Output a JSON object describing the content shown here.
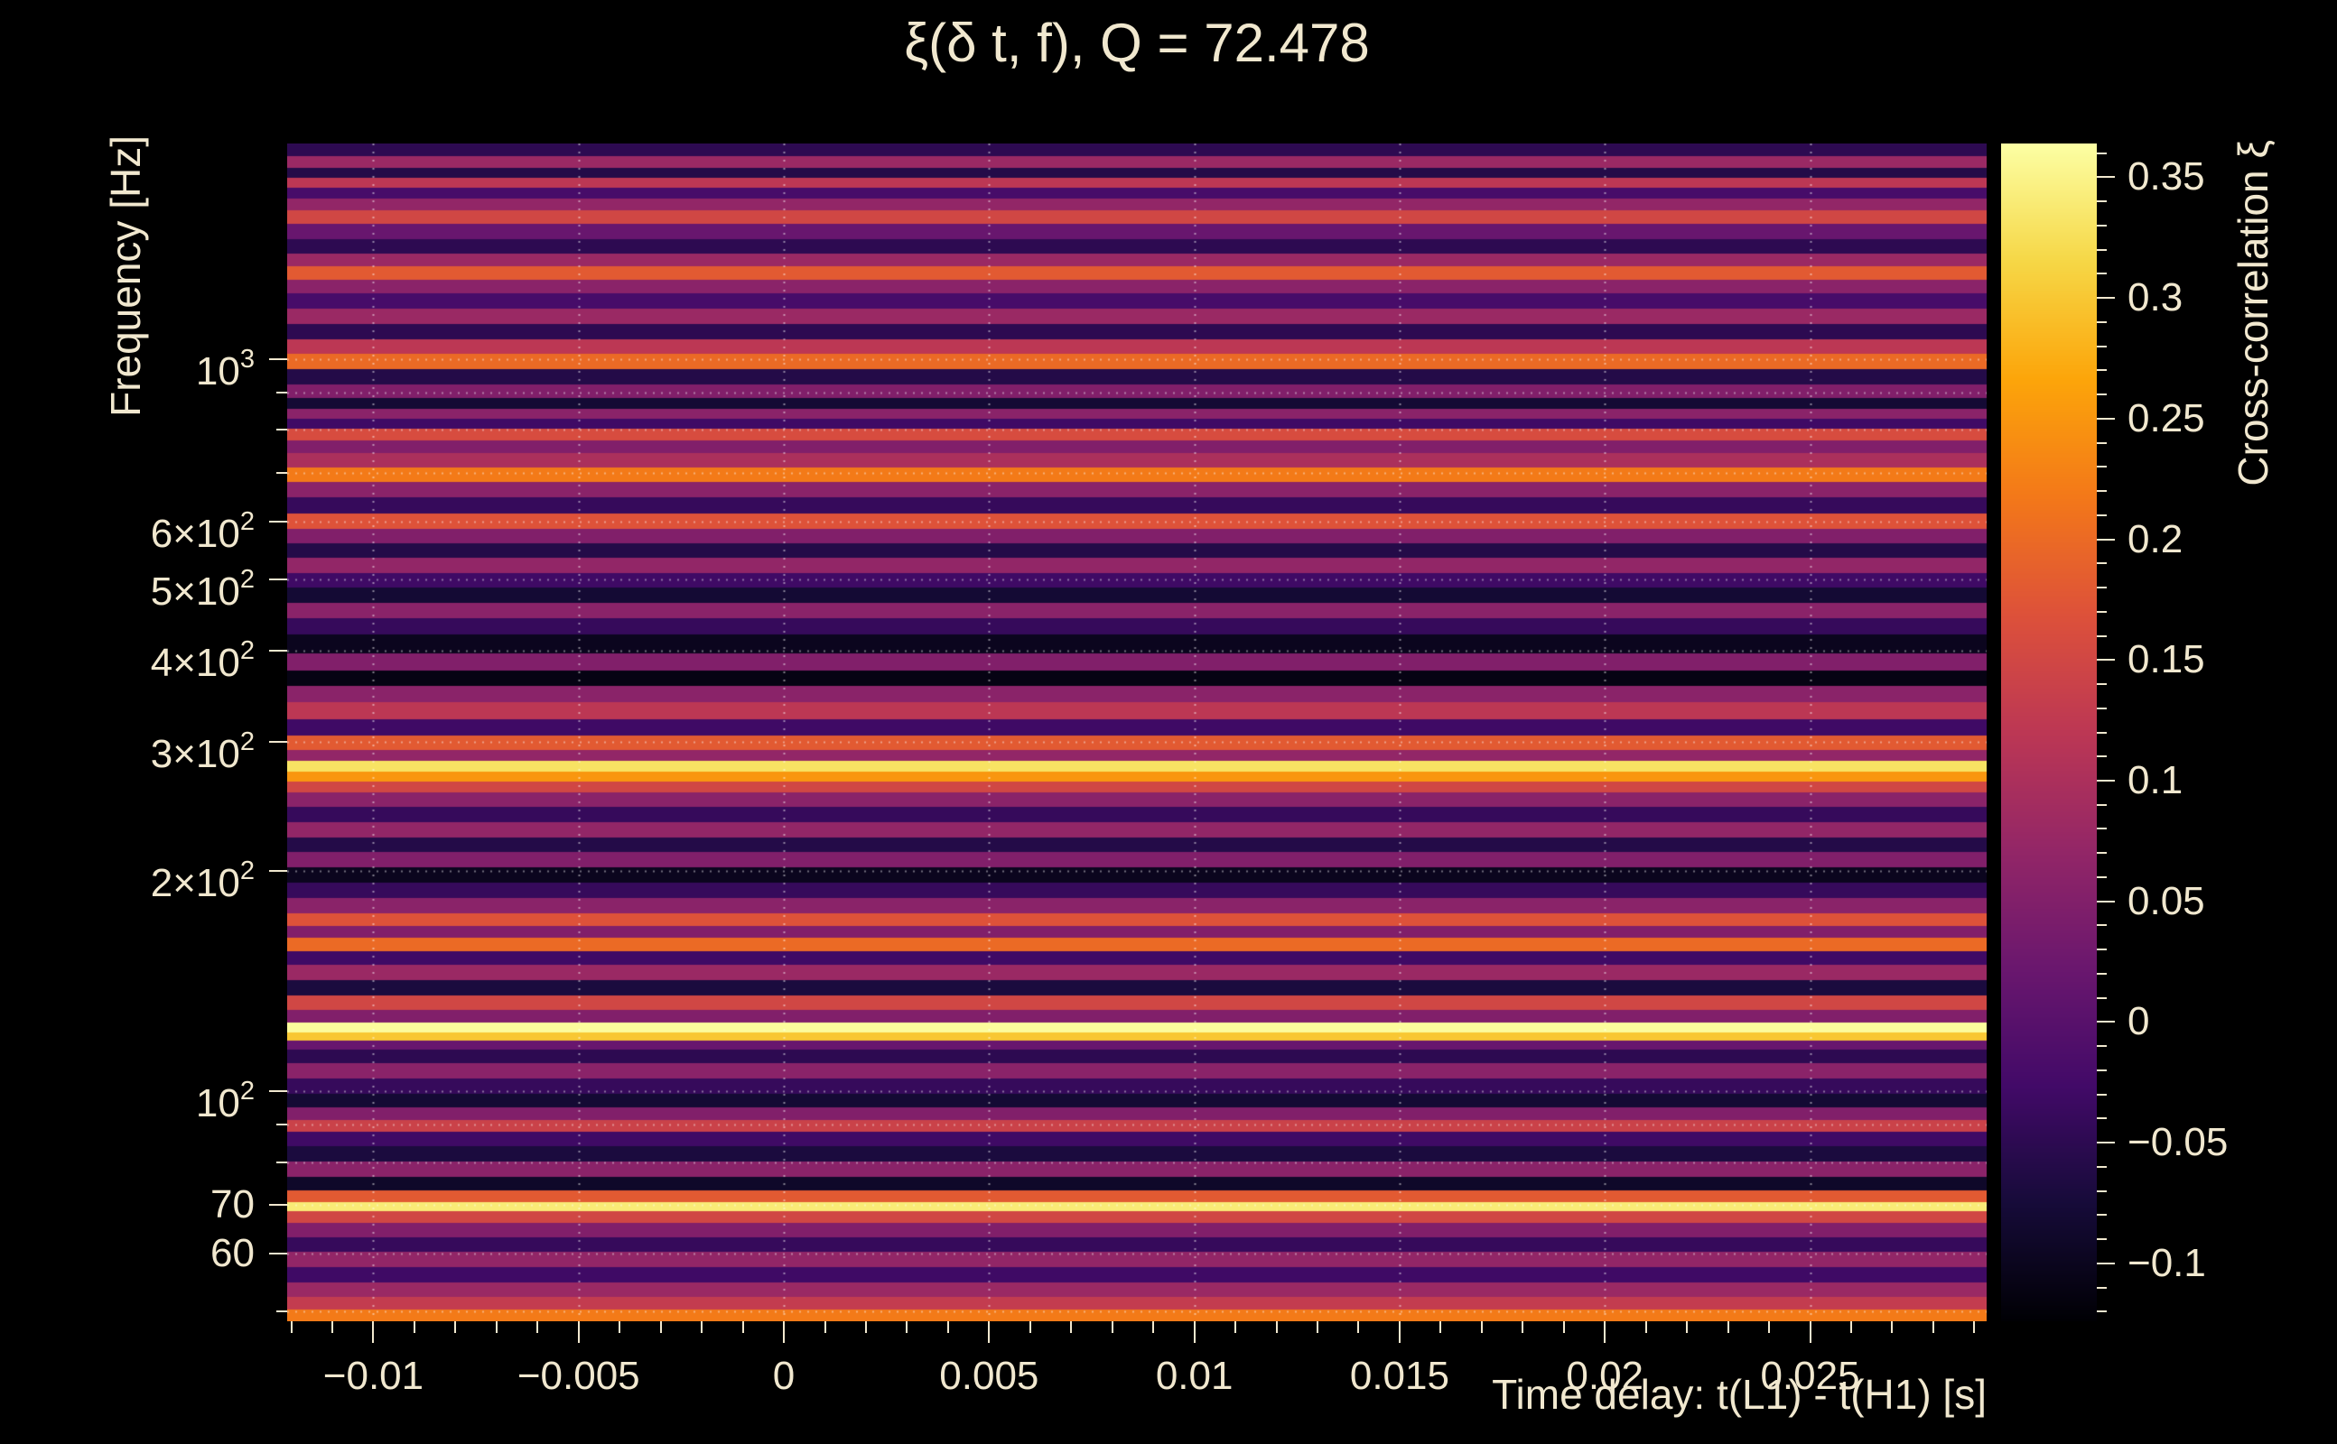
{
  "colors": {
    "background": "#000000",
    "text": "#f1e8cf",
    "grid": "#ffffff"
  },
  "chart_data": {
    "type": "heatmap",
    "title": "ξ(δ t, f), Q = 72.478",
    "xlabel": "Time delay: t(L1) - t(H1) [s]",
    "ylabel": "Frequency [Hz]",
    "zlabel": "Cross-correlation ξ",
    "x_range": [
      -0.0121,
      0.0293
    ],
    "x_ticks": [
      -0.01,
      -0.005,
      0,
      0.005,
      0.01,
      0.015,
      0.02,
      0.025
    ],
    "x_tick_labels": [
      "−0.01",
      "−0.005",
      "0",
      "0.005",
      "0.01",
      "0.015",
      "0.02",
      "0.025"
    ],
    "x_minor_step": 0.001,
    "y_range": [
      48.5,
      1970
    ],
    "y_scale": "log",
    "y_ticks": [
      {
        "value": 1000,
        "mant": "10",
        "sup": "3"
      },
      {
        "value": 600,
        "mant": "6×10",
        "sup": "2"
      },
      {
        "value": 500,
        "mant": "5×10",
        "sup": "2"
      },
      {
        "value": 400,
        "mant": "4×10",
        "sup": "2"
      },
      {
        "value": 300,
        "mant": "3×10",
        "sup": "2"
      },
      {
        "value": 200,
        "mant": "2×10",
        "sup": "2"
      },
      {
        "value": 100,
        "mant": "10",
        "sup": "2"
      },
      {
        "value": 70,
        "mant": "70",
        "sup": ""
      },
      {
        "value": 60,
        "mant": "60",
        "sup": ""
      }
    ],
    "y_minor_ticks": [
      50,
      60,
      70,
      80,
      90,
      100,
      200,
      300,
      400,
      500,
      600,
      700,
      800,
      900,
      1000
    ],
    "grid_x_values": [
      -0.01,
      -0.005,
      0,
      0.005,
      0.01,
      0.015,
      0.02,
      0.025
    ],
    "grid_y_values": [
      1000,
      900,
      800,
      700,
      600,
      500,
      400,
      300,
      200,
      100,
      90,
      80,
      70,
      60,
      50
    ],
    "z_range": [
      -0.124,
      0.364
    ],
    "z_ticks": [
      0.35,
      0.3,
      0.25,
      0.2,
      0.15,
      0.1,
      0.05,
      0,
      -0.05,
      -0.1
    ],
    "z_tick_labels": [
      "0.35",
      "0.3",
      "0.25",
      "0.2",
      "0.15",
      "0.1",
      "0.05",
      "0",
      "−0.05",
      "−0.1"
    ],
    "z_minor_step": 0.01,
    "colormap": "inferno",
    "colormap_stops": [
      [
        0.0,
        "#000004"
      ],
      [
        0.1,
        "#160b39"
      ],
      [
        0.2,
        "#420a68"
      ],
      [
        0.3,
        "#6a176e"
      ],
      [
        0.4,
        "#932667"
      ],
      [
        0.5,
        "#bc3754"
      ],
      [
        0.6,
        "#dd513a"
      ],
      [
        0.7,
        "#f37819"
      ],
      [
        0.8,
        "#fca50a"
      ],
      [
        0.9,
        "#f6d746"
      ],
      [
        1.0,
        "#fcffa4"
      ]
    ],
    "rows_format": [
      "frequency_hz",
      "xi"
    ],
    "rows": [
      [
        1926,
        -0.05
      ],
      [
        1853,
        0.08
      ],
      [
        1793,
        -0.06
      ],
      [
        1742,
        0.12
      ],
      [
        1686,
        -0.02
      ],
      [
        1623,
        0.07
      ],
      [
        1563,
        0.15
      ],
      [
        1490,
        0.02
      ],
      [
        1421,
        -0.05
      ],
      [
        1361,
        0.08
      ],
      [
        1311,
        0.18
      ],
      [
        1256,
        0.06
      ],
      [
        1198,
        -0.02
      ],
      [
        1142,
        0.08
      ],
      [
        1089,
        -0.05
      ],
      [
        1039,
        0.12
      ],
      [
        991,
        0.2
      ],
      [
        945,
        -0.06
      ],
      [
        901,
        0.05
      ],
      [
        867,
        -0.08
      ],
      [
        839,
        0.06
      ],
      [
        815,
        -0.03
      ],
      [
        789,
        0.16
      ],
      [
        759,
        0.05
      ],
      [
        728,
        0.1
      ],
      [
        694,
        0.22
      ],
      [
        662,
        0.06
      ],
      [
        631,
        -0.04
      ],
      [
        599,
        0.17
      ],
      [
        571,
        0.05
      ],
      [
        547,
        -0.06
      ],
      [
        522,
        0.07
      ],
      [
        498,
        -0.03
      ],
      [
        475,
        -0.08
      ],
      [
        453,
        0.06
      ],
      [
        432,
        -0.04
      ],
      [
        408,
        -0.1
      ],
      [
        383,
        0.05
      ],
      [
        366,
        -0.11
      ],
      [
        349,
        0.06
      ],
      [
        331,
        0.12
      ],
      [
        313,
        -0.03
      ],
      [
        298,
        0.18
      ],
      [
        287,
        0.07
      ],
      [
        277.5,
        0.33
      ],
      [
        268.5,
        0.25
      ],
      [
        261,
        0.15
      ],
      [
        250,
        0.06
      ],
      [
        238,
        -0.04
      ],
      [
        227,
        0.07
      ],
      [
        217,
        -0.06
      ],
      [
        207,
        0.05
      ],
      [
        197,
        -0.1
      ],
      [
        188,
        -0.04
      ],
      [
        179,
        0.06
      ],
      [
        171,
        0.17
      ],
      [
        165,
        0.05
      ],
      [
        158.5,
        0.2
      ],
      [
        152,
        -0.03
      ],
      [
        145,
        0.08
      ],
      [
        138,
        -0.07
      ],
      [
        132,
        0.15
      ],
      [
        126,
        0.05
      ],
      [
        122,
        0.36
      ],
      [
        118.5,
        0.3
      ],
      [
        116,
        0.02
      ],
      [
        111.5,
        -0.05
      ],
      [
        106.5,
        0.06
      ],
      [
        101.5,
        -0.04
      ],
      [
        96.7,
        -0.08
      ],
      [
        93,
        0.05
      ],
      [
        89.7,
        0.14
      ],
      [
        86,
        -0.03
      ],
      [
        82,
        -0.07
      ],
      [
        78,
        0.06
      ],
      [
        74.5,
        -0.09
      ],
      [
        71.7,
        0.18
      ],
      [
        69.4,
        0.34
      ],
      [
        67.4,
        0.15
      ],
      [
        64.6,
        0.05
      ],
      [
        61.6,
        -0.04
      ],
      [
        58.8,
        0.07
      ],
      [
        56,
        -0.03
      ],
      [
        53.4,
        0.08
      ],
      [
        51.2,
        0.13
      ],
      [
        49.3,
        0.22
      ]
    ]
  }
}
